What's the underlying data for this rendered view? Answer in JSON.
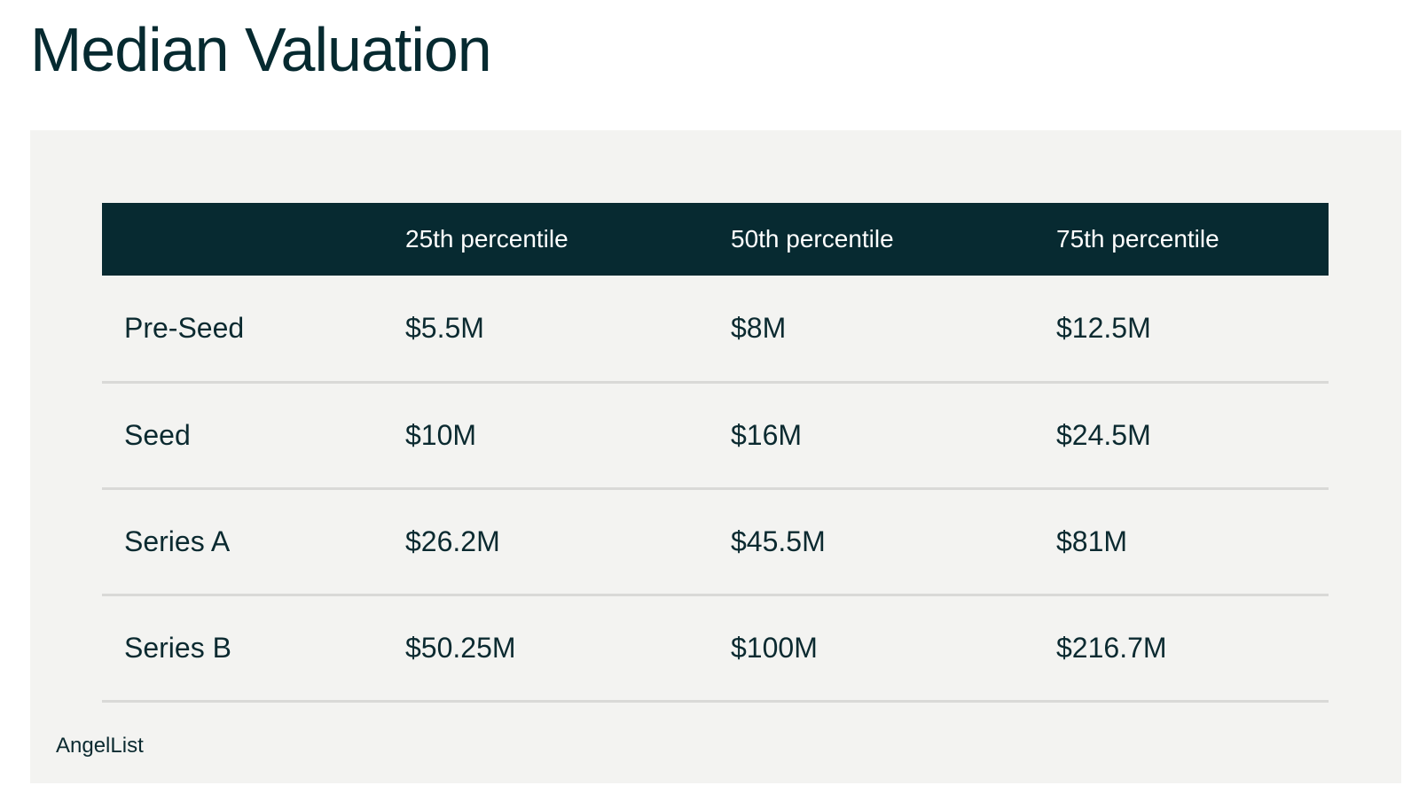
{
  "title": "Median Valuation",
  "source": "AngelList",
  "colors": {
    "header_bg": "#072a31",
    "panel_bg": "#f3f3f1",
    "text": "#0b2a30",
    "row_divider": "#d9d9d7"
  },
  "chart_data": {
    "type": "table",
    "title": "Median Valuation",
    "columns": [
      "",
      "25th percentile",
      "50th percentile",
      "75th percentile"
    ],
    "rows": [
      {
        "label": "Pre-Seed",
        "values": [
          "$5.5M",
          "$8M",
          "$12.5M"
        ]
      },
      {
        "label": "Seed",
        "values": [
          "$10M",
          "$16M",
          "$24.5M"
        ]
      },
      {
        "label": "Series A",
        "values": [
          "$26.2M",
          "$45.5M",
          "$81M"
        ]
      },
      {
        "label": "Series B",
        "values": [
          "$50.25M",
          "$100M",
          "$216.7M"
        ]
      }
    ],
    "source": "AngelList"
  }
}
